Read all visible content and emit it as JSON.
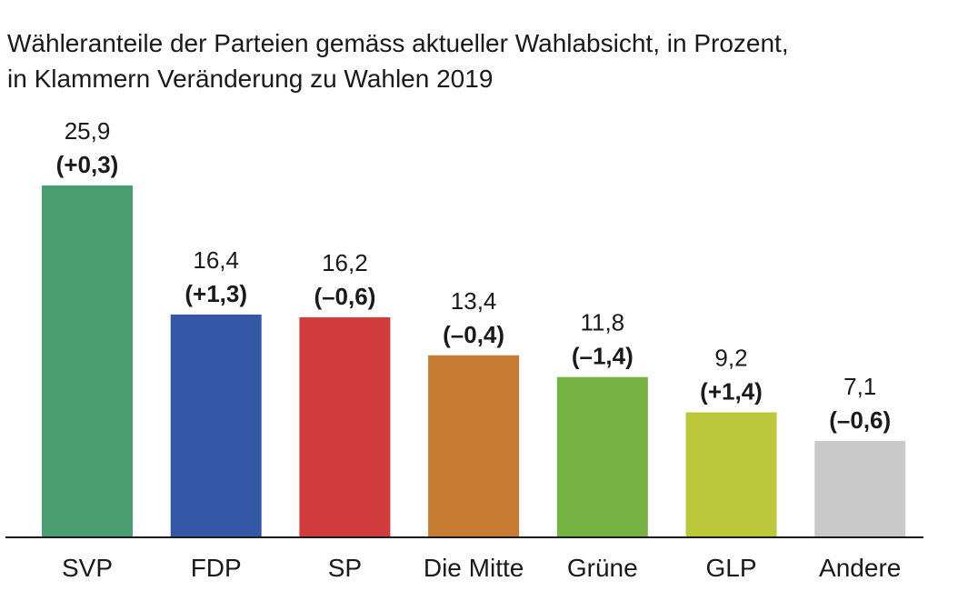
{
  "chart_data": {
    "type": "bar",
    "title_lines": [
      "Wähleranteile der Parteien gemäss aktueller Wahlabsicht, in Prozent,",
      "in Klammern Veränderung zu Wahlen 2019"
    ],
    "categories": [
      "SVP",
      "FDP",
      "SP",
      "Die Mitte",
      "Grüne",
      "GLP",
      "Andere"
    ],
    "values": [
      25.9,
      16.4,
      16.2,
      13.4,
      11.8,
      9.2,
      7.1
    ],
    "value_labels": [
      "25,9",
      "16,4",
      "16,2",
      "13,4",
      "11,8",
      "9,2",
      "7,1"
    ],
    "change_labels": [
      "(+0,3)",
      "(+1,3)",
      "(–0,6)",
      "(–0,4)",
      "(–1,4)",
      "(+1,4)",
      "(–0,6)"
    ],
    "colors": [
      "#4a9e72",
      "#3457a6",
      "#d13b3b",
      "#c77a32",
      "#76b144",
      "#bcc83a",
      "#c9c9c9"
    ],
    "xlabel": "",
    "ylabel": "",
    "ylim": [
      0,
      25.9
    ],
    "grid": false,
    "legend": "none"
  }
}
